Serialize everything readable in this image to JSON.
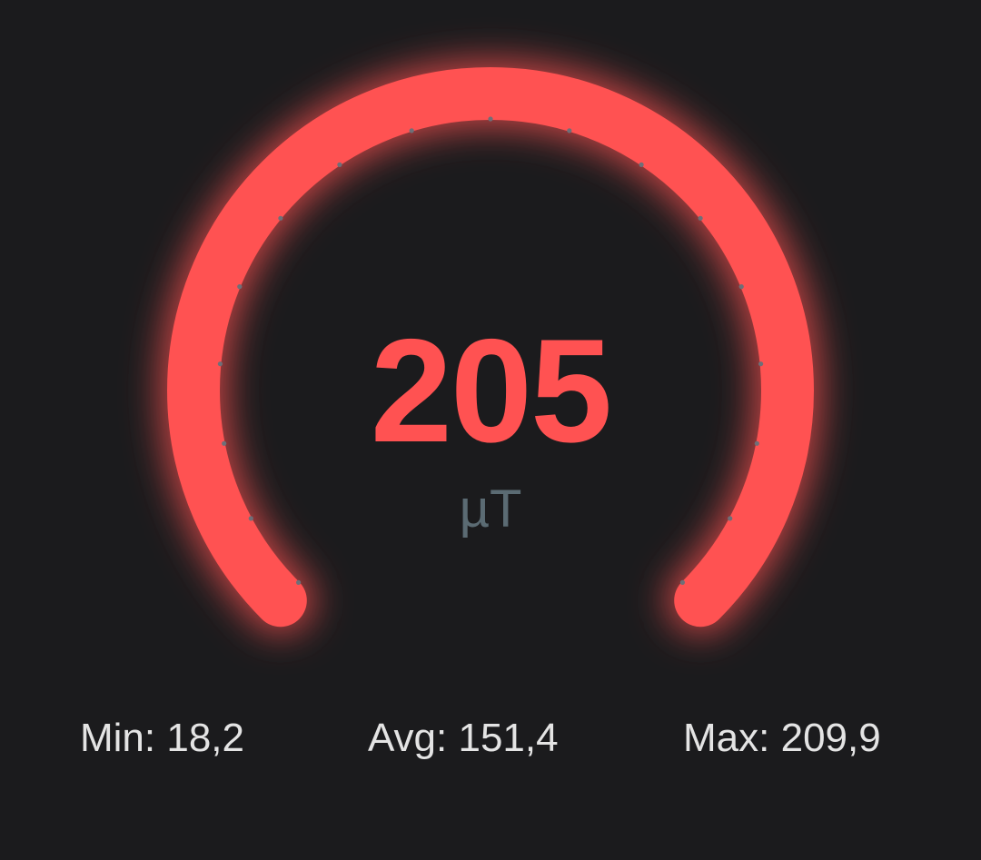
{
  "gauge": {
    "value": "205",
    "unit": "µT",
    "fill_fraction": 1.0,
    "tick_count": 17,
    "accent_color": "#ff5252",
    "tick_color": "#6e6f78"
  },
  "stats": {
    "min_label": "Min:",
    "min_value": "18,2",
    "avg_label": "Avg:",
    "avg_value": "151,4",
    "max_label": "Max:",
    "max_value": "209,9"
  }
}
